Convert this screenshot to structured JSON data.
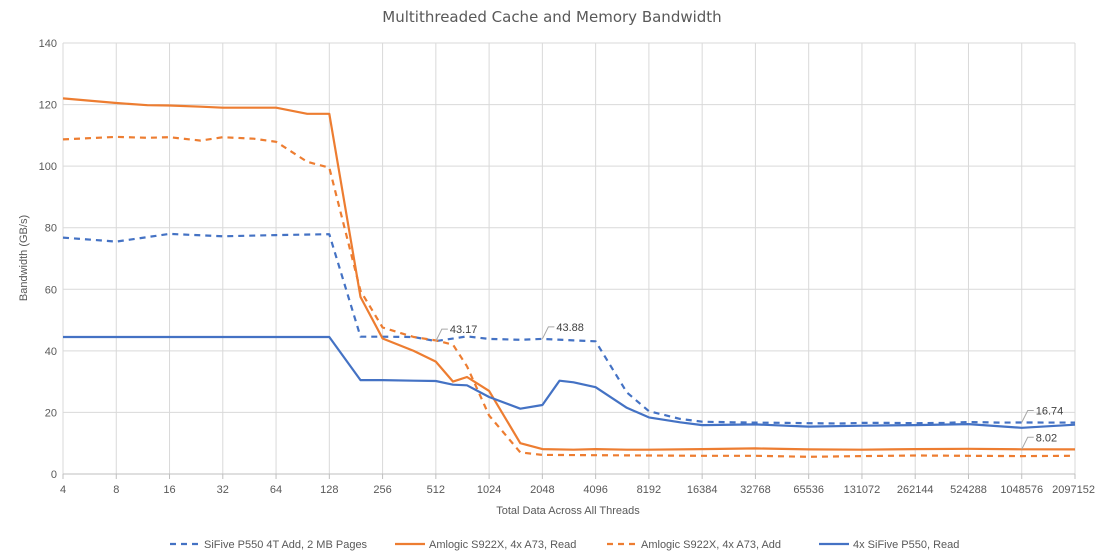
{
  "chart_data": {
    "type": "line",
    "title": "Multithreaded Cache and Memory Bandwidth",
    "xlabel": "Total Data Across All Threads",
    "ylabel": "Bandwidth (GB/s)",
    "ylim": [
      0,
      140
    ],
    "yticks": [
      "0",
      "20",
      "40",
      "60",
      "80",
      "100",
      "120",
      "140"
    ],
    "x_scale": "log2",
    "xticks": [
      "4",
      "8",
      "16",
      "32",
      "64",
      "128",
      "256",
      "512",
      "1024",
      "2048",
      "4096",
      "8192",
      "16384",
      "32768",
      "65536",
      "131072",
      "262144",
      "524288",
      "1048576",
      "2097152"
    ],
    "grid": true,
    "legend_position": "bottom",
    "series": [
      {
        "name": "SiFive P550 4T Add, 2 MB Pages",
        "color": "#4472c4",
        "dash": "dashed",
        "x": [
          4,
          8,
          16,
          32,
          64,
          128,
          192,
          256,
          384,
          512,
          768,
          1024,
          1536,
          2048,
          3072,
          4096,
          6144,
          8192,
          12288,
          16384,
          24576,
          32768,
          49152,
          65536,
          98304,
          131072,
          196608,
          262144,
          393216,
          524288,
          786432,
          1048576,
          2097152
        ],
        "values": [
          76.8,
          75.5,
          78.0,
          77.2,
          77.6,
          77.9,
          44.6,
          44.6,
          44.5,
          43.17,
          44.7,
          43.9,
          43.6,
          43.88,
          43.4,
          43.1,
          26.5,
          20.4,
          17.9,
          17.0,
          16.8,
          16.7,
          16.6,
          16.5,
          16.4,
          16.6,
          16.6,
          16.5,
          16.6,
          16.9,
          16.7,
          16.74,
          16.7
        ],
        "labels": [
          {
            "x": 512,
            "text": "43.17"
          },
          {
            "x": 2048,
            "text": "43.88"
          },
          {
            "x": 1048576,
            "text": "16.74"
          }
        ]
      },
      {
        "name": "Amlogic S922X, 4x A73, Read",
        "color": "#ed7d31",
        "dash": "solid",
        "x": [
          4,
          8,
          12,
          16,
          24,
          32,
          48,
          64,
          96,
          128,
          192,
          256,
          384,
          512,
          640,
          768,
          1024,
          1536,
          2048,
          3072,
          4096,
          6144,
          8192,
          16384,
          32768,
          65536,
          131072,
          262144,
          524288,
          1048576,
          2097152
        ],
        "values": [
          122.0,
          120.5,
          119.8,
          119.7,
          119.3,
          119.0,
          119.0,
          119.0,
          117.0,
          117.0,
          57.5,
          44.0,
          40.0,
          36.5,
          30.0,
          31.5,
          27.0,
          10.0,
          8.1,
          7.9,
          8.1,
          7.9,
          7.9,
          8.1,
          8.3,
          8.0,
          7.9,
          8.1,
          8.2,
          8.02,
          8.0
        ],
        "labels": [
          {
            "x": 1048576,
            "text": "8.02"
          }
        ]
      },
      {
        "name": "Amlogic S922X, 4x A73, Add",
        "color": "#ed7d31",
        "dash": "dashed",
        "x": [
          4,
          8,
          12,
          16,
          24,
          32,
          48,
          64,
          96,
          128,
          192,
          256,
          384,
          512,
          640,
          768,
          1024,
          1536,
          2048,
          4096,
          8192,
          16384,
          32768,
          65536,
          131072,
          262144,
          524288,
          1048576,
          2097152
        ],
        "values": [
          108.7,
          109.5,
          109.2,
          109.4,
          108.3,
          109.4,
          108.9,
          107.9,
          101.4,
          99.5,
          59.5,
          47.6,
          44.5,
          43.4,
          42.0,
          35.0,
          19.0,
          7.0,
          6.2,
          6.1,
          6.0,
          5.9,
          5.9,
          5.6,
          5.8,
          6.0,
          5.9,
          5.8,
          5.9
        ],
        "labels": []
      },
      {
        "name": "4x SiFive P550, Read",
        "color": "#4472c4",
        "dash": "solid",
        "x": [
          4,
          8,
          16,
          32,
          64,
          128,
          192,
          256,
          384,
          512,
          640,
          768,
          1024,
          1536,
          2048,
          2560,
          3072,
          4096,
          6144,
          8192,
          12288,
          16384,
          32768,
          65536,
          131072,
          262144,
          524288,
          1048576,
          2097152
        ],
        "values": [
          44.5,
          44.5,
          44.5,
          44.5,
          44.5,
          44.5,
          30.5,
          30.5,
          30.3,
          30.2,
          29.0,
          28.8,
          25.0,
          21.2,
          22.4,
          30.3,
          29.8,
          28.2,
          21.5,
          18.4,
          16.8,
          15.9,
          16.1,
          15.4,
          15.7,
          15.9,
          16.2,
          15.0,
          16.0
        ],
        "labels": []
      }
    ]
  }
}
